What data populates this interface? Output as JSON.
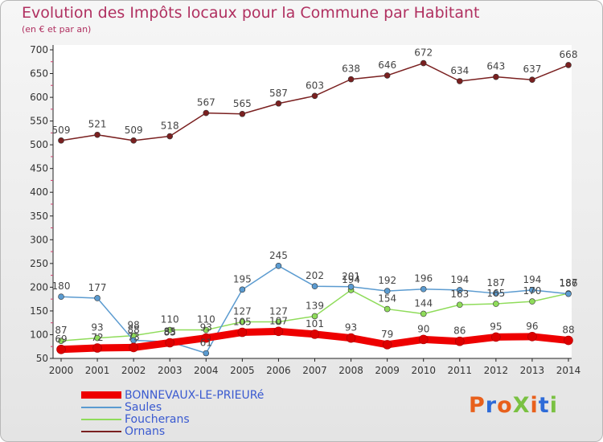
{
  "chart_data": {
    "type": "line",
    "title": "Evolution des Impôts locaux pour la Commune par Habitant",
    "subtitle": "(en € et par an)",
    "x": [
      "2000",
      "2001",
      "2002",
      "2003",
      "2004",
      "2005",
      "2006",
      "2007",
      "2008",
      "2009",
      "2010",
      "2011",
      "2012",
      "2013",
      "2014"
    ],
    "ylim": [
      50,
      700
    ],
    "yticks": [
      50,
      100,
      150,
      200,
      250,
      300,
      350,
      400,
      450,
      500,
      550,
      600,
      650,
      700
    ],
    "grid": false,
    "series": [
      {
        "name": "BONNEVAUX-LE-PRIEURé",
        "color": "#ee0000",
        "values": [
          69,
          72,
          73,
          83,
          93,
          105,
          107,
          101,
          93,
          79,
          90,
          86,
          95,
          96,
          88
        ]
      },
      {
        "name": "Saules",
        "color": "#5b9bd0",
        "values": [
          180,
          177,
          88,
          85,
          61,
          195,
          245,
          202,
          201,
          192,
          196,
          194,
          187,
          194,
          186
        ]
      },
      {
        "name": "Foucherans",
        "color": "#8fdc5a",
        "values": [
          87,
          93,
          98,
          110,
          110,
          127,
          127,
          139,
          194,
          154,
          144,
          163,
          165,
          170,
          187
        ]
      },
      {
        "name": "Ornans",
        "color": "#7a2020",
        "values": [
          509,
          521,
          509,
          518,
          567,
          565,
          587,
          603,
          638,
          646,
          672,
          634,
          643,
          637,
          668
        ]
      }
    ]
  },
  "logo": {
    "text": "ProXiti",
    "colors": [
      "#e8601c",
      "#2e6bd8",
      "#e8601c",
      "#7ac142",
      "#e8601c",
      "#2e6bd8",
      "#7ac142"
    ]
  }
}
